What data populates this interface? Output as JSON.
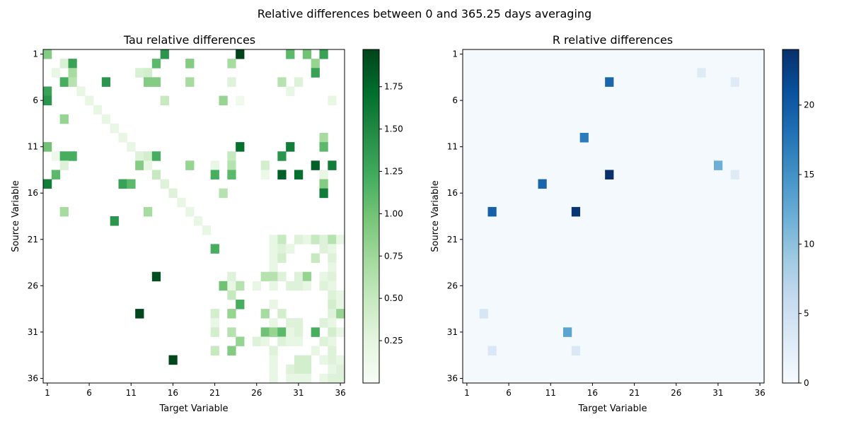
{
  "suptitle": "Relative differences between 0 and 365.25 days averaging",
  "chart_data": [
    {
      "type": "heatmap",
      "title": "Tau relative differences",
      "xlabel": "Target Variable",
      "ylabel": "Source Variable",
      "xticks": [
        "1",
        "6",
        "11",
        "16",
        "21",
        "26",
        "31",
        "36"
      ],
      "yticks": [
        "1",
        "6",
        "11",
        "16",
        "21",
        "26",
        "31",
        "36"
      ],
      "size": 36,
      "colormap": "Greens",
      "colors": [
        "#f7fcf5",
        "#e5f5e0",
        "#c7e9c0",
        "#a1d99b",
        "#74c476",
        "#41ab5d",
        "#238b45",
        "#006d2c",
        "#00441b"
      ],
      "vmin": 0,
      "vmax": 1.97,
      "colorbar_ticks": [
        "0.25",
        "0.50",
        "0.75",
        "1.00",
        "1.25",
        "1.50",
        "1.75"
      ],
      "colorbar_tick_values": [
        0.25,
        0.5,
        0.75,
        1.0,
        1.25,
        1.5,
        1.75
      ],
      "cells": [
        [
          1,
          1,
          0.9
        ],
        [
          1,
          15,
          1.4
        ],
        [
          1,
          24,
          1.97
        ],
        [
          1,
          30,
          1.1
        ],
        [
          1,
          32,
          1.0
        ],
        [
          1,
          34,
          1.3
        ],
        [
          2,
          3,
          0.35
        ],
        [
          2,
          4,
          1.3
        ],
        [
          2,
          14,
          1.1
        ],
        [
          2,
          18,
          0.9
        ],
        [
          2,
          23,
          0.7
        ],
        [
          2,
          33,
          0.8
        ],
        [
          3,
          2,
          0.2
        ],
        [
          3,
          4,
          0.7
        ],
        [
          3,
          12,
          0.35
        ],
        [
          3,
          13,
          0.4
        ],
        [
          3,
          33,
          1.3
        ],
        [
          4,
          3,
          1.2
        ],
        [
          4,
          4,
          0.6
        ],
        [
          4,
          8,
          1.4
        ],
        [
          4,
          13,
          0.9
        ],
        [
          4,
          14,
          0.9
        ],
        [
          4,
          18,
          0.7
        ],
        [
          4,
          23,
          0.3
        ],
        [
          4,
          29,
          0.6
        ],
        [
          4,
          31,
          0.3
        ],
        [
          5,
          1,
          1.3
        ],
        [
          5,
          5,
          0.2
        ],
        [
          5,
          30,
          0.2
        ],
        [
          6,
          1,
          1.4
        ],
        [
          6,
          6,
          0.2
        ],
        [
          6,
          15,
          0.5
        ],
        [
          6,
          22,
          0.8
        ],
        [
          6,
          24,
          0.1
        ],
        [
          6,
          35,
          0.2
        ],
        [
          7,
          7,
          0.2
        ],
        [
          8,
          3,
          0.8
        ],
        [
          8,
          8,
          0.2
        ],
        [
          9,
          9,
          0.2
        ],
        [
          10,
          10,
          0.2
        ],
        [
          10,
          34,
          0.7
        ],
        [
          11,
          1,
          1.0
        ],
        [
          11,
          11,
          0.2
        ],
        [
          11,
          24,
          1.7
        ],
        [
          11,
          30,
          1.6
        ],
        [
          11,
          34,
          1.1
        ],
        [
          12,
          2,
          0.15
        ],
        [
          12,
          3,
          1.2
        ],
        [
          12,
          4,
          1.2
        ],
        [
          12,
          12,
          0.3
        ],
        [
          12,
          13,
          0.4
        ],
        [
          12,
          14,
          1.2
        ],
        [
          12,
          23,
          0.5
        ],
        [
          12,
          29,
          1.4
        ],
        [
          13,
          3,
          0.3
        ],
        [
          13,
          12,
          0.9
        ],
        [
          13,
          13,
          0.2
        ],
        [
          13,
          18,
          0.8
        ],
        [
          13,
          21,
          0.2
        ],
        [
          13,
          23,
          0.6
        ],
        [
          13,
          27,
          0.4
        ],
        [
          13,
          33,
          1.8
        ],
        [
          13,
          35,
          1.6
        ],
        [
          14,
          2,
          1.1
        ],
        [
          14,
          14,
          0.5
        ],
        [
          14,
          21,
          1.2
        ],
        [
          14,
          23,
          1.1
        ],
        [
          14,
          27,
          0.15
        ],
        [
          14,
          29,
          1.8
        ],
        [
          14,
          31,
          1.7
        ],
        [
          14,
          34,
          0.2
        ],
        [
          15,
          1,
          1.6
        ],
        [
          15,
          10,
          1.3
        ],
        [
          15,
          11,
          1.1
        ],
        [
          15,
          15,
          0.3
        ],
        [
          15,
          34,
          0.9
        ],
        [
          16,
          16,
          0.3
        ],
        [
          16,
          22,
          0.6
        ],
        [
          16,
          34,
          1.6
        ],
        [
          17,
          17,
          0.2
        ],
        [
          18,
          3,
          0.7
        ],
        [
          18,
          13,
          0.7
        ],
        [
          18,
          18,
          0.2
        ],
        [
          19,
          9,
          1.4
        ],
        [
          19,
          19,
          0.2
        ],
        [
          20,
          20,
          0.2
        ],
        [
          21,
          28,
          0.2
        ],
        [
          21,
          29,
          0.5
        ],
        [
          21,
          31,
          0.3
        ],
        [
          21,
          32,
          0.2
        ],
        [
          21,
          33,
          0.5
        ],
        [
          21,
          34,
          0.3
        ],
        [
          21,
          35,
          0.6
        ],
        [
          21,
          36,
          0.2
        ],
        [
          22,
          21,
          1.2
        ],
        [
          22,
          28,
          0.2
        ],
        [
          22,
          29,
          0.3
        ],
        [
          22,
          30,
          0.2
        ],
        [
          22,
          34,
          0.3
        ],
        [
          22,
          35,
          0.2
        ],
        [
          23,
          28,
          0.2
        ],
        [
          23,
          29,
          0.4
        ],
        [
          23,
          33,
          0.5
        ],
        [
          23,
          35,
          0.3
        ],
        [
          24,
          28,
          0.2
        ],
        [
          24,
          35,
          0.2
        ],
        [
          25,
          14,
          1.9
        ],
        [
          25,
          23,
          0.3
        ],
        [
          25,
          27,
          0.6
        ],
        [
          25,
          28,
          0.6
        ],
        [
          25,
          29,
          0.3
        ],
        [
          25,
          31,
          0.3
        ],
        [
          25,
          32,
          0.8
        ],
        [
          25,
          34,
          0.2
        ],
        [
          25,
          35,
          0.3
        ],
        [
          26,
          22,
          1.0
        ],
        [
          26,
          23,
          0.2
        ],
        [
          26,
          24,
          0.6
        ],
        [
          26,
          26,
          0.2
        ],
        [
          26,
          28,
          0.2
        ],
        [
          26,
          30,
          0.3
        ],
        [
          26,
          31,
          0.3
        ],
        [
          26,
          32,
          0.2
        ],
        [
          26,
          34,
          0.3
        ],
        [
          26,
          35,
          0.2
        ],
        [
          27,
          23,
          0.5
        ],
        [
          27,
          35,
          0.3
        ],
        [
          27,
          36,
          0.2
        ],
        [
          28,
          24,
          1.2
        ],
        [
          28,
          28,
          0.2
        ],
        [
          28,
          35,
          0.4
        ],
        [
          28,
          36,
          0.2
        ],
        [
          29,
          12,
          1.95
        ],
        [
          29,
          21,
          0.4
        ],
        [
          29,
          23,
          0.8
        ],
        [
          29,
          27,
          0.7
        ],
        [
          29,
          29,
          0.4
        ],
        [
          29,
          35,
          0.3
        ],
        [
          29,
          36,
          0.8
        ],
        [
          30,
          21,
          0.2
        ],
        [
          30,
          28,
          0.2
        ],
        [
          30,
          30,
          0.3
        ],
        [
          30,
          31,
          0.3
        ],
        [
          30,
          34,
          0.3
        ],
        [
          30,
          35,
          0.2
        ],
        [
          31,
          21,
          0.4
        ],
        [
          31,
          23,
          0.6
        ],
        [
          31,
          27,
          1.0
        ],
        [
          31,
          28,
          0.8
        ],
        [
          31,
          29,
          1.1
        ],
        [
          31,
          30,
          0.2
        ],
        [
          31,
          31,
          0.3
        ],
        [
          31,
          33,
          1.2
        ],
        [
          31,
          35,
          0.4
        ],
        [
          31,
          36,
          0.2
        ],
        [
          32,
          24,
          0.8
        ],
        [
          32,
          26,
          0.3
        ],
        [
          32,
          27,
          0.2
        ],
        [
          32,
          29,
          0.3
        ],
        [
          32,
          30,
          0.2
        ],
        [
          32,
          31,
          0.2
        ],
        [
          32,
          34,
          0.3
        ],
        [
          32,
          35,
          0.2
        ],
        [
          33,
          21,
          0.5
        ],
        [
          33,
          23,
          0.9
        ],
        [
          33,
          28,
          0.3
        ],
        [
          33,
          33,
          0.2
        ],
        [
          33,
          35,
          0.3
        ],
        [
          34,
          16,
          1.95
        ],
        [
          34,
          28,
          0.2
        ],
        [
          34,
          31,
          0.4
        ],
        [
          34,
          32,
          0.4
        ],
        [
          34,
          34,
          0.2
        ],
        [
          34,
          35,
          0.3
        ],
        [
          34,
          36,
          0.2
        ],
        [
          35,
          28,
          0.2
        ],
        [
          35,
          30,
          0.3
        ],
        [
          35,
          31,
          0.4
        ],
        [
          35,
          32,
          0.4
        ],
        [
          35,
          35,
          0.2
        ],
        [
          35,
          36,
          0.3
        ],
        [
          36,
          28,
          0.2
        ],
        [
          36,
          30,
          0.2
        ],
        [
          36,
          31,
          0.2
        ],
        [
          36,
          32,
          0.2
        ],
        [
          36,
          34,
          0.2
        ],
        [
          36,
          35,
          0.3
        ],
        [
          36,
          36,
          0.3
        ]
      ]
    },
    {
      "type": "heatmap",
      "title": "R relative differences",
      "xlabel": "Target Variable",
      "ylabel": "Source Variable",
      "xticks": [
        "1",
        "6",
        "11",
        "16",
        "21",
        "26",
        "31",
        "36"
      ],
      "yticks": [
        "1",
        "6",
        "11",
        "16",
        "21",
        "26",
        "31",
        "36"
      ],
      "size": 36,
      "colormap": "Blues",
      "colors": [
        "#f7fbff",
        "#deebf7",
        "#c6dbef",
        "#9ecae1",
        "#6baed6",
        "#4292c6",
        "#2171b5",
        "#08519c",
        "#08306b"
      ],
      "vmin": 0,
      "vmax": 24,
      "colorbar_ticks": [
        "0",
        "5",
        "10",
        "15",
        "20"
      ],
      "colorbar_tick_values": [
        0,
        5,
        10,
        15,
        20
      ],
      "background_value": 0.4,
      "cells": [
        [
          3,
          29,
          3.0
        ],
        [
          4,
          18,
          19.0
        ],
        [
          4,
          33,
          3.0
        ],
        [
          10,
          15,
          17.0
        ],
        [
          13,
          31,
          12.0
        ],
        [
          14,
          18,
          24.0
        ],
        [
          14,
          33,
          3.0
        ],
        [
          15,
          10,
          19.0
        ],
        [
          18,
          4,
          19.5
        ],
        [
          18,
          14,
          23.5
        ],
        [
          29,
          3,
          4.0
        ],
        [
          31,
          13,
          13.0
        ],
        [
          33,
          4,
          3.5
        ],
        [
          33,
          14,
          3.5
        ]
      ]
    }
  ]
}
